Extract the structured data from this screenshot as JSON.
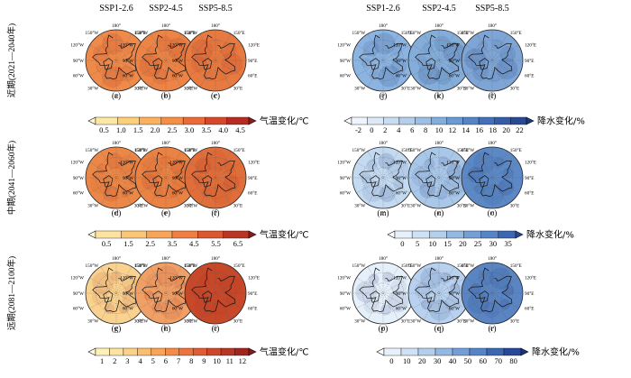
{
  "scenarios": [
    "SSP1-2.6",
    "SSP2-4.5",
    "SSP5-8.5",
    "SSP1-2.6",
    "SSP2-4.5",
    "SSP5-8.5"
  ],
  "periods": [
    "近期(2021—2040年)",
    "中期(2041—2060年)",
    "远期(2081—2100年)"
  ],
  "panel_labels": [
    [
      "(a)",
      "(b)",
      "(c)",
      "(j)",
      "(k)",
      "(l)"
    ],
    [
      "(d)",
      "(e)",
      "(f)",
      "(m)",
      "(n)",
      "(o)"
    ],
    [
      "(g)",
      "(h)",
      "(i)",
      "(p)",
      "(q)",
      "(r)"
    ]
  ],
  "map_ticks": {
    "top": "180°",
    "top_left": "150°W",
    "top_right": "150°E",
    "left_upper": "120°W",
    "right_upper": "120°E",
    "left_mid": "90°W",
    "right_mid": "90°E",
    "left_lower": "60°W",
    "right_lower": "60°E",
    "bottom_left": "30°W",
    "bottom_right": "30°E",
    "bottom": "0°"
  },
  "colorbars": [
    {
      "label": "气温变化/℃",
      "ticks": [
        "0.5",
        "1.0",
        "1.5",
        "2.0",
        "2.5",
        "3.0",
        "3.5",
        "4.0",
        "4.5"
      ],
      "colors": [
        "#fff7d1",
        "#fde7a4",
        "#fccf78",
        "#fbb05c",
        "#f68e46",
        "#ea6a38",
        "#d6482b",
        "#b62c22",
        "#8f1a1a"
      ]
    },
    {
      "label": "降水变化/%",
      "ticks": [
        "-2",
        "0",
        "2",
        "4",
        "6",
        "8",
        "10",
        "12",
        "14",
        "16",
        "18",
        "20",
        "22"
      ],
      "colors": [
        "#ffffff",
        "#eef5fc",
        "#dde9f7",
        "#c9ddf2",
        "#b3cfec",
        "#9bbfe5",
        "#82addd",
        "#6a9ad4",
        "#5585c8",
        "#4370ba",
        "#345ca9",
        "#284a94",
        "#1c387c"
      ]
    },
    {
      "label": "气温变化/℃",
      "ticks": [
        "0.5",
        "1.5",
        "2.5",
        "3.5",
        "4.5",
        "5.5",
        "6.5"
      ],
      "colors": [
        "#fff7d1",
        "#fde2a0",
        "#fcc676",
        "#f9a457",
        "#f07e42",
        "#dc5630",
        "#bb3524",
        "#8f1a1a"
      ]
    },
    {
      "label": "降水变化/%",
      "ticks": [
        "0",
        "5",
        "10",
        "15",
        "20",
        "25",
        "30",
        "35"
      ],
      "colors": [
        "#ffffff",
        "#e8f1fb",
        "#cfe1f4",
        "#b3cfec",
        "#93b9e2",
        "#739fd6",
        "#5585c8",
        "#3b67b3",
        "#264897"
      ]
    },
    {
      "label": "气温变化/℃",
      "ticks": [
        "1",
        "2",
        "3",
        "4",
        "5",
        "6",
        "7",
        "8",
        "9",
        "10",
        "11",
        "12"
      ],
      "colors": [
        "#fffbe0",
        "#fff0b7",
        "#fde2a0",
        "#fcd188",
        "#fbbd6e",
        "#f9a457",
        "#f48c48",
        "#ec733d",
        "#e05c33",
        "#cf472b",
        "#b93424",
        "#a1251e",
        "#861818"
      ]
    },
    {
      "label": "降水变化/%",
      "ticks": [
        "0",
        "10",
        "20",
        "30",
        "40",
        "50",
        "60",
        "70",
        "80"
      ],
      "colors": [
        "#ffffff",
        "#e8f1fb",
        "#cfe1f4",
        "#b3cfec",
        "#93b9e2",
        "#739fd6",
        "#5585c8",
        "#3b67b3",
        "#264897",
        "#1a3479"
      ]
    }
  ],
  "map_fill": {
    "temp": [
      [
        "#ee8a4a",
        "#eb8446",
        "#e67a41"
      ],
      [
        "#ec8847",
        "#e98243",
        "#df6e3a"
      ],
      [
        "#f9d28f",
        "#f0a066",
        "#c8482a"
      ]
    ],
    "precip": [
      [
        "#8cb4e0",
        "#84add9",
        "#7ea5d6"
      ],
      [
        "#c3daf1",
        "#a9c7e9",
        "#5c88c5"
      ],
      [
        "#e6f0fa",
        "#b8d1ee",
        "#5a84c2"
      ]
    ]
  }
}
